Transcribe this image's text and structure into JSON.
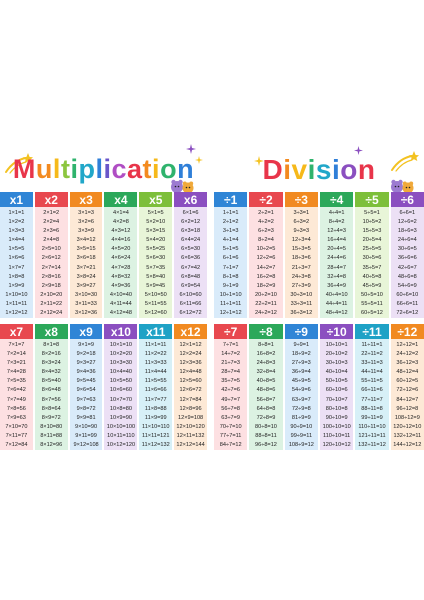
{
  "multiplication": {
    "title": [
      "M",
      "u",
      "l",
      "t",
      "i",
      "p",
      "l",
      "i",
      "c",
      "a",
      "t",
      "i",
      "o",
      "n"
    ],
    "title_colors": [
      "#e8354a",
      "#f38a1f",
      "#f6b91a",
      "#8cc63f",
      "#2fb36d",
      "#21a7c9",
      "#2f7fd8",
      "#6a56c9",
      "#b04ec4",
      "#e8354a",
      "#f38a1f",
      "#f6b91a",
      "#2fb36d",
      "#2f7fd8"
    ],
    "row1": [
      {
        "head": "x1",
        "color": "#2f85d6",
        "bg": "#d9ebfa",
        "facts": [
          "1×1=1",
          "1×2=2",
          "1×3=3",
          "1×4=4",
          "1×5=5",
          "1×6=6",
          "1×7=7",
          "1×8=8",
          "1×9=9",
          "1×10=10",
          "1×11=11",
          "1×12=12"
        ]
      },
      {
        "head": "x2",
        "color": "#e8484f",
        "bg": "#fde0e2",
        "facts": [
          "2×1=2",
          "2×2=4",
          "2×3=6",
          "2×4=8",
          "2×5=10",
          "2×6=12",
          "2×7=14",
          "2×8=16",
          "2×9=18",
          "2×10=20",
          "2×11=22",
          "2×12=24"
        ]
      },
      {
        "head": "x3",
        "color": "#f18a21",
        "bg": "#fde9d6",
        "facts": [
          "3×1=3",
          "3×2=6",
          "3×3=9",
          "3×4=12",
          "3×5=15",
          "3×6=18",
          "3×7=21",
          "3×8=24",
          "3×9=27",
          "3×10=30",
          "3×11=33",
          "3×12=36"
        ]
      },
      {
        "head": "x4",
        "color": "#2ca85a",
        "bg": "#dcf2e2",
        "facts": [
          "4×1=4",
          "4×2=8",
          "4×3=12",
          "4×4=16",
          "4×5=20",
          "4×6=24",
          "4×7=28",
          "4×8=32",
          "4×9=36",
          "4×10=40",
          "4×11=44",
          "4×12=48"
        ]
      },
      {
        "head": "x5",
        "color": "#7dbf3a",
        "bg": "#e8f5d8",
        "facts": [
          "5×1=5",
          "5×2=10",
          "5×3=15",
          "5×4=20",
          "5×5=25",
          "5×6=30",
          "5×7=35",
          "5×8=40",
          "5×9=45",
          "5×10=50",
          "5×11=55",
          "5×12=60"
        ]
      },
      {
        "head": "x6",
        "color": "#8b4fc0",
        "bg": "#ece0f5",
        "facts": [
          "6×1=6",
          "6×2=12",
          "6×3=18",
          "6×4=24",
          "6×5=30",
          "6×6=36",
          "6×7=42",
          "6×8=48",
          "6×9=54",
          "6×10=60",
          "6×11=66",
          "6×12=72"
        ]
      }
    ],
    "row2": [
      {
        "head": "x7",
        "color": "#e8484f",
        "bg": "#fde0e2",
        "facts": [
          "7×1=7",
          "7×2=14",
          "7×3=21",
          "7×4=28",
          "7×5=35",
          "7×6=42",
          "7×7=49",
          "7×8=56",
          "7×9=63",
          "7×10=70",
          "7×11=77",
          "7×12=84"
        ]
      },
      {
        "head": "x8",
        "color": "#2ca85a",
        "bg": "#dcf2e2",
        "facts": [
          "8×1=8",
          "8×2=16",
          "8×3=24",
          "8×4=32",
          "8×5=40",
          "8×6=48",
          "8×7=56",
          "8×8=64",
          "8×9=72",
          "8×10=80",
          "8×11=88",
          "8×12=96"
        ]
      },
      {
        "head": "x9",
        "color": "#2f85d6",
        "bg": "#d9ebfa",
        "facts": [
          "9×1=9",
          "9×2=18",
          "9×3=27",
          "9×4=36",
          "9×5=45",
          "9×6=54",
          "9×7=63",
          "9×8=72",
          "9×9=81",
          "9×10=90",
          "9×11=99",
          "9×12=108"
        ]
      },
      {
        "head": "x10",
        "color": "#8b4fc0",
        "bg": "#ece0f5",
        "facts": [
          "10×1=10",
          "10×2=20",
          "10×3=30",
          "10×4=40",
          "10×5=50",
          "10×6=60",
          "10×7=70",
          "10×8=80",
          "10×9=90",
          "10×10=100",
          "10×11=110",
          "10×12=120"
        ]
      },
      {
        "head": "x11",
        "color": "#1fa2c6",
        "bg": "#d7f0f7",
        "facts": [
          "11×1=11",
          "11×2=22",
          "11×3=33",
          "11×4=44",
          "11×5=55",
          "11×6=66",
          "11×7=77",
          "11×8=88",
          "11×9=99",
          "11×10=110",
          "11×11=121",
          "11×12=132"
        ]
      },
      {
        "head": "x12",
        "color": "#f18a21",
        "bg": "#fde9d6",
        "facts": [
          "12×1=12",
          "12×2=24",
          "12×3=36",
          "12×4=48",
          "12×5=60",
          "12×6=72",
          "12×7=84",
          "12×8=96",
          "12×9=108",
          "12×10=120",
          "12×11=132",
          "12×12=144"
        ]
      }
    ]
  },
  "division": {
    "title": [
      "D",
      "i",
      "v",
      "i",
      "s",
      "i",
      "o",
      "n"
    ],
    "title_colors": [
      "#e8354a",
      "#f38a1f",
      "#f6b91a",
      "#2fb36d",
      "#21a7c9",
      "#2f7fd8",
      "#8b4fc0",
      "#e8354a"
    ],
    "row1": [
      {
        "head": "÷1",
        "color": "#2f85d6",
        "bg": "#d9ebfa",
        "facts": [
          "1÷1=1",
          "2÷1=2",
          "3÷1=3",
          "4÷1=4",
          "5÷1=5",
          "6÷1=6",
          "7÷1=7",
          "8÷1=8",
          "9÷1=9",
          "10÷1=10",
          "11÷1=11",
          "12÷1=12"
        ]
      },
      {
        "head": "÷2",
        "color": "#e8484f",
        "bg": "#fde0e2",
        "facts": [
          "2÷2=1",
          "4÷2=2",
          "6÷2=3",
          "8÷2=4",
          "10÷2=5",
          "12÷2=6",
          "14÷2=7",
          "16÷2=8",
          "18÷2=9",
          "20÷2=10",
          "22÷2=11",
          "24÷2=12"
        ]
      },
      {
        "head": "÷3",
        "color": "#f18a21",
        "bg": "#fde9d6",
        "facts": [
          "3÷3=1",
          "6÷3=2",
          "9÷3=3",
          "12÷3=4",
          "15÷3=5",
          "18÷3=6",
          "21÷3=7",
          "24÷3=8",
          "27÷3=9",
          "30÷3=10",
          "33÷3=11",
          "36÷3=12"
        ]
      },
      {
        "head": "÷4",
        "color": "#2ca85a",
        "bg": "#dcf2e2",
        "facts": [
          "4÷4=1",
          "8÷4=2",
          "12÷4=3",
          "16÷4=4",
          "20÷4=5",
          "24÷4=6",
          "28÷4=7",
          "32÷4=8",
          "36÷4=9",
          "40÷4=10",
          "44÷4=11",
          "48÷4=12"
        ]
      },
      {
        "head": "÷5",
        "color": "#7dbf3a",
        "bg": "#e8f5d8",
        "facts": [
          "5÷5=1",
          "10÷5=2",
          "15÷5=3",
          "20÷5=4",
          "25÷5=5",
          "30÷5=6",
          "35÷5=7",
          "40÷5=8",
          "45÷5=9",
          "50÷5=10",
          "55÷5=11",
          "60÷5=12"
        ]
      },
      {
        "head": "÷6",
        "color": "#8b4fc0",
        "bg": "#ece0f5",
        "facts": [
          "6÷6=1",
          "12÷6=2",
          "18÷6=3",
          "24÷6=4",
          "30÷6=5",
          "36÷6=6",
          "42÷6=7",
          "48÷6=8",
          "54÷6=9",
          "60÷6=10",
          "66÷6=11",
          "72÷6=12"
        ]
      }
    ],
    "row2": [
      {
        "head": "÷7",
        "color": "#e8484f",
        "bg": "#fde0e2",
        "facts": [
          "7÷7=1",
          "14÷7=2",
          "21÷7=3",
          "28÷7=4",
          "35÷7=5",
          "42÷7=6",
          "49÷7=7",
          "56÷7=8",
          "63÷7=9",
          "70÷7=10",
          "77÷7=11",
          "84÷7=12"
        ]
      },
      {
        "head": "÷8",
        "color": "#2ca85a",
        "bg": "#dcf2e2",
        "facts": [
          "8÷8=1",
          "16÷8=2",
          "24÷8=3",
          "32÷8=4",
          "40÷8=5",
          "48÷8=6",
          "56÷8=7",
          "64÷8=8",
          "72÷8=9",
          "80÷8=10",
          "88÷8=11",
          "96÷8=12"
        ]
      },
      {
        "head": "÷9",
        "color": "#2f85d6",
        "bg": "#d9ebfa",
        "facts": [
          "9÷9=1",
          "18÷9=2",
          "27÷9=3",
          "36÷9=4",
          "45÷9=5",
          "54÷9=6",
          "63÷9=7",
          "72÷9=8",
          "81÷9=9",
          "90÷9=10",
          "99÷9=11",
          "108÷9=12"
        ]
      },
      {
        "head": "÷10",
        "color": "#8b4fc0",
        "bg": "#ece0f5",
        "facts": [
          "10÷10=1",
          "20÷10=2",
          "30÷10=3",
          "40÷10=4",
          "50÷10=5",
          "60÷10=6",
          "70÷10=7",
          "80÷10=8",
          "90÷10=9",
          "100÷10=10",
          "110÷10=11",
          "120÷10=12"
        ]
      },
      {
        "head": "÷11",
        "color": "#1fa2c6",
        "bg": "#d7f0f7",
        "facts": [
          "11÷11=1",
          "22÷11=2",
          "33÷11=3",
          "44÷11=4",
          "55÷11=5",
          "66÷11=6",
          "77÷11=7",
          "88÷11=8",
          "99÷11=9",
          "110÷11=10",
          "121÷11=11",
          "132÷11=12"
        ]
      },
      {
        "head": "÷12",
        "color": "#f18a21",
        "bg": "#fde9d6",
        "facts": [
          "12÷12=1",
          "24÷12=2",
          "36÷12=3",
          "48÷12=4",
          "60÷12=5",
          "72÷12=6",
          "84÷12=7",
          "96÷12=8",
          "108÷12=9",
          "120÷12=10",
          "132÷12=11",
          "144÷12=12"
        ]
      }
    ]
  }
}
